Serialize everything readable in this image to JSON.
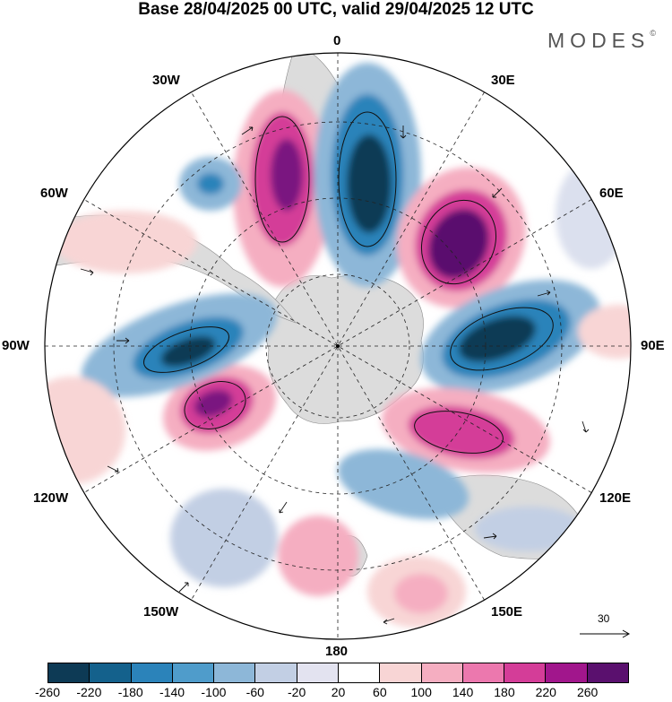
{
  "title": "Base 28/04/2025 00 UTC, valid 29/04/2025 12 UTC",
  "logo": {
    "text": "MODES",
    "mark": "©"
  },
  "meridian_labels": {
    "m0": "0",
    "m30e": "30E",
    "m60e": "60E",
    "m90e": "90E",
    "m120e": "120E",
    "m150e": "150E",
    "m180": "180",
    "m150w": "150W",
    "m120w": "120W",
    "m90w": "90W",
    "m60w": "60W",
    "m30w": "30W"
  },
  "vector_scale": {
    "value": "30"
  },
  "colorbar": {
    "colors": [
      "#0d3a55",
      "#14618c",
      "#2b83ba",
      "#4f9ccb",
      "#8db7d8",
      "#c2cfe4",
      "#e3e3f0",
      "#ffffff",
      "#f8d5d5",
      "#f5aec1",
      "#ec78ae",
      "#d43d98",
      "#a1168c",
      "#5a106e"
    ],
    "ticks": [
      "-260",
      "-220",
      "-180",
      "-140",
      "-100",
      "-60",
      "-20",
      "20",
      "60",
      "100",
      "140",
      "180",
      "220",
      "260"
    ]
  },
  "anomaly_palette": {
    "neg_strong": "#0d3a55",
    "neg_mid": "#2b83ba",
    "neg_light": "#8db7d8",
    "neg_faint": "#dbe0ee",
    "pos_faint": "#f8d5d5",
    "pos_light": "#f5aec1",
    "pos_mid": "#d43d98",
    "pos_strong": "#5a106e",
    "land": "#d9d9d9"
  }
}
